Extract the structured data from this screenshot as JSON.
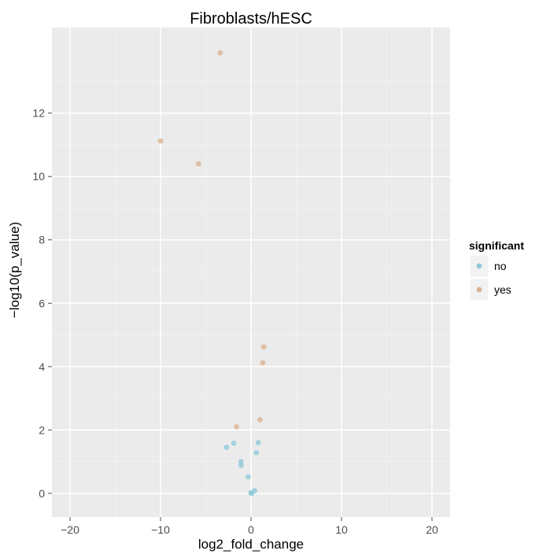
{
  "chart_data": {
    "type": "scatter",
    "title": "Fibroblasts/hESC",
    "xlabel": "log2_fold_change",
    "ylabel": "−log10(p_value)",
    "xlim": [
      -22,
      22
    ],
    "ylim": [
      -0.75,
      14.7
    ],
    "x_ticks": [
      -20,
      -10,
      0,
      10,
      20
    ],
    "x_tick_labels": [
      "−20",
      "−10",
      "0",
      "10",
      "20"
    ],
    "y_ticks": [
      0,
      2,
      4,
      6,
      8,
      10,
      12
    ],
    "y_tick_labels": [
      "0",
      "2",
      "4",
      "6",
      "8",
      "10",
      "12"
    ],
    "grid": true,
    "legend": {
      "title": "significant",
      "position": "right",
      "entries": [
        {
          "label": "no",
          "color": "#8ec9d9"
        },
        {
          "label": "yes",
          "color": "#dcb290"
        }
      ]
    },
    "series": [
      {
        "name": "no",
        "color": "#8ec9d9",
        "points": [
          {
            "x": -2.7,
            "y": 1.45
          },
          {
            "x": -1.9,
            "y": 1.58
          },
          {
            "x": 0.8,
            "y": 1.6
          },
          {
            "x": 0.6,
            "y": 1.28
          },
          {
            "x": -1.1,
            "y": 1.0
          },
          {
            "x": -1.1,
            "y": 0.88
          },
          {
            "x": -0.3,
            "y": 0.52
          },
          {
            "x": 0.4,
            "y": 0.08
          },
          {
            "x": 0.0,
            "y": 0.02
          },
          {
            "x": 0.05,
            "y": 0.0
          }
        ]
      },
      {
        "name": "yes",
        "color": "#dcb290",
        "points": [
          {
            "x": -3.4,
            "y": 13.9
          },
          {
            "x": -10.0,
            "y": 11.12
          },
          {
            "x": -5.8,
            "y": 10.4
          },
          {
            "x": 1.4,
            "y": 4.62
          },
          {
            "x": 1.3,
            "y": 4.12
          },
          {
            "x": -1.6,
            "y": 2.1
          },
          {
            "x": 1.0,
            "y": 2.32
          }
        ]
      }
    ]
  }
}
